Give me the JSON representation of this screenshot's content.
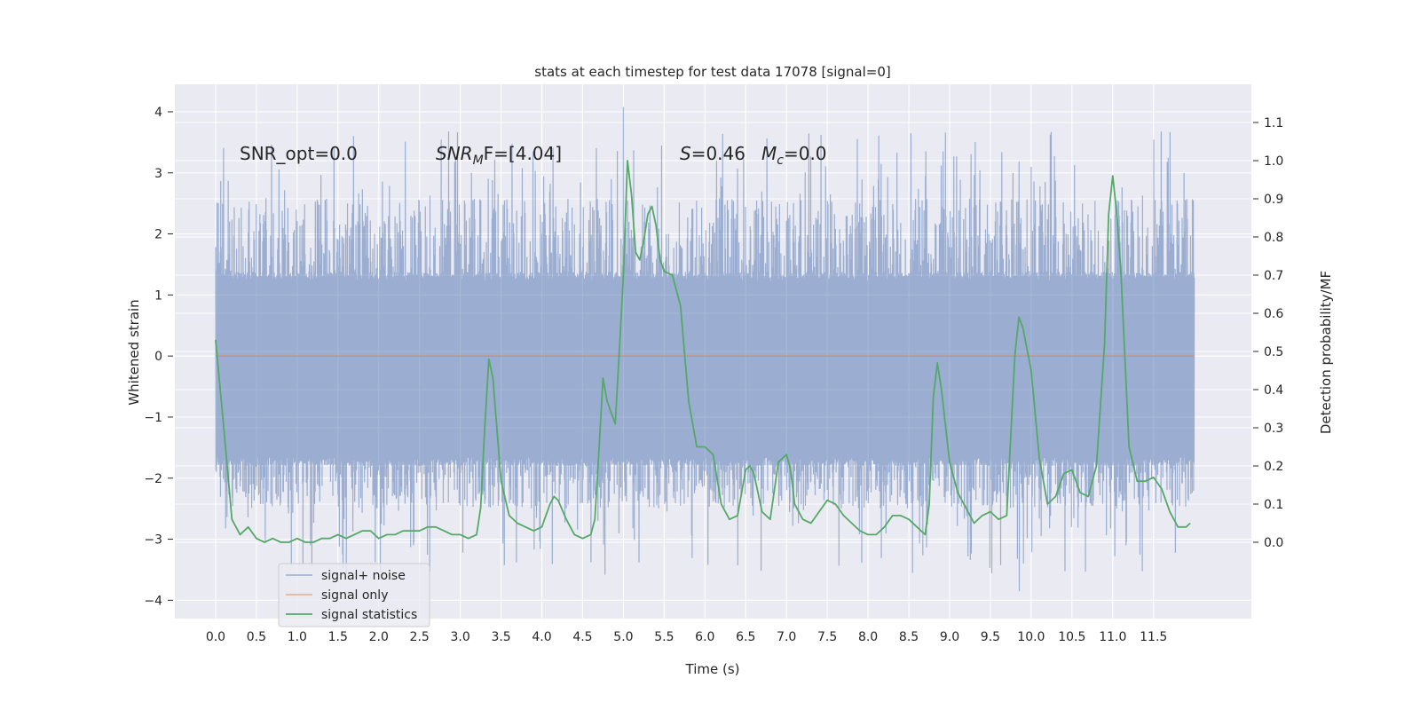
{
  "chart_data": {
    "type": "line",
    "title": "stats at each timestep for test data 17078 [signal=0]",
    "xlabel": "Time (s)",
    "ylabel": "Whitened strain",
    "y2label": "Detection probability/MF",
    "xlim": [
      -0.5,
      12.7
    ],
    "ylim": [
      -4.3,
      4.45
    ],
    "y2lim": [
      -0.2,
      1.2
    ],
    "x_ticks": [
      0.0,
      0.5,
      1.0,
      1.5,
      2.0,
      2.5,
      3.0,
      3.5,
      4.0,
      4.5,
      5.0,
      5.5,
      6.0,
      6.5,
      7.0,
      7.5,
      8.0,
      8.5,
      9.0,
      9.5,
      10.0,
      10.5,
      11.0,
      11.5
    ],
    "x_tick_labels": [
      "0.0",
      "0.5",
      "1.0",
      "1.5",
      "2.0",
      "2.5",
      "3.0",
      "3.5",
      "4.0",
      "4.5",
      "5.0",
      "5.5",
      "6.0",
      "6.5",
      "7.0",
      "7.5",
      "8.0",
      "8.5",
      "9.0",
      "9.5",
      "10.0",
      "10.5",
      "11.0",
      "11.5"
    ],
    "y_ticks": [
      4,
      3,
      2,
      1,
      0,
      -1,
      -2,
      -3,
      -4
    ],
    "y_tick_labels": [
      "4",
      "3",
      "2",
      "1",
      "0",
      "−1",
      "−2",
      "−3",
      "−4"
    ],
    "y2_ticks": [
      1.1,
      1.0,
      0.9,
      0.8,
      0.7,
      0.6,
      0.5,
      0.4,
      0.3,
      0.2,
      0.1,
      0.0
    ],
    "y2_tick_labels": [
      "1.1",
      "1.0",
      "0.9",
      "0.8",
      "0.7",
      "0.6",
      "0.5",
      "0.4",
      "0.3",
      "0.2",
      "0.1",
      "0.0"
    ],
    "grid": true,
    "legend_position": "lower-left",
    "annotations": {
      "snr_opt": "SNR_opt=0.0",
      "snr_mf_a": "SNR",
      "snr_mf_sub": "M",
      "snr_mf_b": "F=[4.04]",
      "s_sym": "S",
      "s_val": "=0.46",
      "mc_sym": "M",
      "mc_sub": "c",
      "mc_val": "=0.0"
    },
    "series": [
      {
        "name": "signal+ noise",
        "color": "#4c72b0",
        "axis": "left",
        "x_range": [
          0.0,
          12.0
        ],
        "core_band": [
          -1.8,
          1.38
        ],
        "peak_max": 4.08,
        "peak_min": -3.85
      },
      {
        "name": "signal only",
        "color": "#dd8452",
        "axis": "left",
        "x": [
          0.0,
          12.0
        ],
        "y": [
          0.0,
          0.0
        ]
      },
      {
        "name": "signal statistics",
        "color": "#55a868",
        "axis": "right",
        "x": [
          0.0,
          0.1,
          0.2,
          0.3,
          0.4,
          0.5,
          0.6,
          0.7,
          0.8,
          0.9,
          1.0,
          1.1,
          1.2,
          1.3,
          1.4,
          1.5,
          1.6,
          1.7,
          1.8,
          1.9,
          2.0,
          2.1,
          2.2,
          2.3,
          2.4,
          2.5,
          2.6,
          2.7,
          2.8,
          2.9,
          3.0,
          3.1,
          3.2,
          3.25,
          3.3,
          3.35,
          3.4,
          3.5,
          3.6,
          3.7,
          3.8,
          3.9,
          4.0,
          4.1,
          4.15,
          4.2,
          4.3,
          4.4,
          4.5,
          4.6,
          4.65,
          4.7,
          4.75,
          4.8,
          4.9,
          4.95,
          5.0,
          5.05,
          5.1,
          5.15,
          5.2,
          5.25,
          5.3,
          5.35,
          5.4,
          5.45,
          5.5,
          5.6,
          5.7,
          5.8,
          5.9,
          6.0,
          6.1,
          6.2,
          6.3,
          6.4,
          6.5,
          6.55,
          6.6,
          6.7,
          6.8,
          6.9,
          7.0,
          7.05,
          7.1,
          7.2,
          7.3,
          7.4,
          7.5,
          7.6,
          7.7,
          7.8,
          7.9,
          8.0,
          8.1,
          8.2,
          8.3,
          8.4,
          8.5,
          8.6,
          8.7,
          8.75,
          8.8,
          8.85,
          8.9,
          9.0,
          9.1,
          9.2,
          9.3,
          9.4,
          9.5,
          9.55,
          9.6,
          9.7,
          9.8,
          9.85,
          9.9,
          10.0,
          10.1,
          10.2,
          10.3,
          10.4,
          10.5,
          10.6,
          10.7,
          10.8,
          10.9,
          10.95,
          11.0,
          11.05,
          11.1,
          11.2,
          11.3,
          11.4,
          11.5,
          11.6,
          11.7,
          11.8,
          11.9,
          11.95
        ],
        "y": [
          0.53,
          0.3,
          0.06,
          0.02,
          0.04,
          0.01,
          0.0,
          0.01,
          0.0,
          0.0,
          0.01,
          0.0,
          0.0,
          0.01,
          0.01,
          0.02,
          0.01,
          0.02,
          0.03,
          0.03,
          0.01,
          0.02,
          0.02,
          0.03,
          0.03,
          0.03,
          0.04,
          0.04,
          0.03,
          0.02,
          0.02,
          0.01,
          0.02,
          0.09,
          0.3,
          0.48,
          0.43,
          0.16,
          0.07,
          0.05,
          0.04,
          0.03,
          0.04,
          0.1,
          0.12,
          0.11,
          0.06,
          0.02,
          0.01,
          0.02,
          0.06,
          0.24,
          0.43,
          0.37,
          0.31,
          0.5,
          0.7,
          1.0,
          0.91,
          0.76,
          0.74,
          0.79,
          0.86,
          0.88,
          0.83,
          0.74,
          0.71,
          0.7,
          0.62,
          0.37,
          0.25,
          0.25,
          0.23,
          0.1,
          0.06,
          0.07,
          0.19,
          0.2,
          0.18,
          0.08,
          0.06,
          0.21,
          0.23,
          0.19,
          0.1,
          0.06,
          0.05,
          0.08,
          0.11,
          0.1,
          0.07,
          0.05,
          0.03,
          0.02,
          0.02,
          0.04,
          0.07,
          0.07,
          0.06,
          0.04,
          0.02,
          0.1,
          0.38,
          0.47,
          0.4,
          0.21,
          0.13,
          0.09,
          0.05,
          0.07,
          0.08,
          0.07,
          0.06,
          0.07,
          0.49,
          0.59,
          0.56,
          0.45,
          0.22,
          0.1,
          0.12,
          0.18,
          0.19,
          0.13,
          0.12,
          0.2,
          0.52,
          0.86,
          0.96,
          0.86,
          0.71,
          0.25,
          0.16,
          0.16,
          0.17,
          0.14,
          0.08,
          0.04,
          0.04,
          0.05
        ]
      }
    ]
  }
}
